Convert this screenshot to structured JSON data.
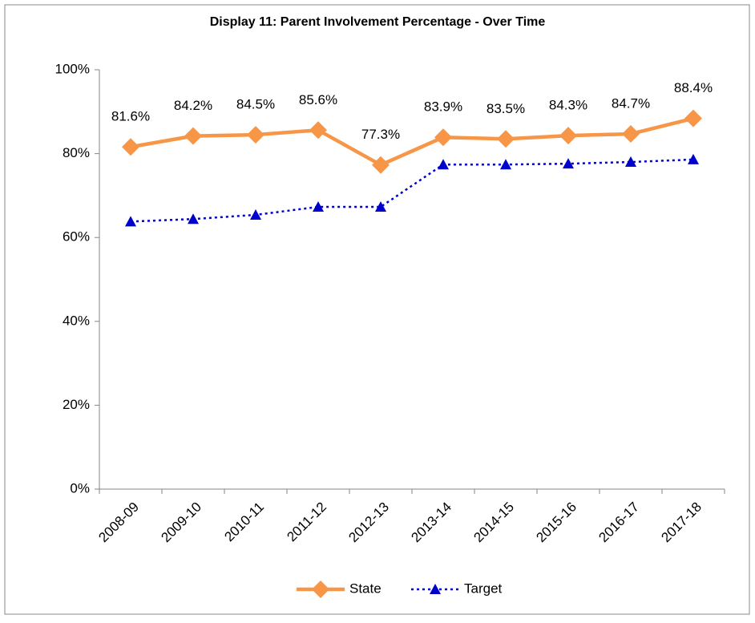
{
  "chart_data": {
    "type": "line",
    "title": "Display 11: Parent Involvement Percentage - Over Time",
    "categories": [
      "2008-09",
      "2009-10",
      "2010-11",
      "2011-12",
      "2012-13",
      "2013-14",
      "2014-15",
      "2015-16",
      "2016-17",
      "2017-18"
    ],
    "series": [
      {
        "name": "State",
        "color": "#f79646",
        "marker": "diamond",
        "dash": "solid",
        "values": [
          81.6,
          84.2,
          84.5,
          85.6,
          77.3,
          83.9,
          83.5,
          84.3,
          84.7,
          88.4
        ],
        "value_labels": [
          "81.6%",
          "84.2%",
          "84.5%",
          "85.6%",
          "77.3%",
          "83.9%",
          "83.5%",
          "84.3%",
          "84.7%",
          "88.4%"
        ]
      },
      {
        "name": "Target",
        "color": "#0000cc",
        "marker": "triangle",
        "dash": "dotted",
        "values": [
          63.8,
          64.4,
          65.4,
          67.3,
          67.3,
          77.4,
          77.4,
          77.6,
          78.0,
          78.6
        ]
      }
    ],
    "ylim": [
      0,
      100
    ],
    "yticks": [
      {
        "value": 0,
        "label": "0%"
      },
      {
        "value": 20,
        "label": "20%"
      },
      {
        "value": 40,
        "label": "40%"
      },
      {
        "value": 60,
        "label": "60%"
      },
      {
        "value": 80,
        "label": "80%"
      },
      {
        "value": 100,
        "label": "100%"
      }
    ],
    "legend": "bottom"
  }
}
